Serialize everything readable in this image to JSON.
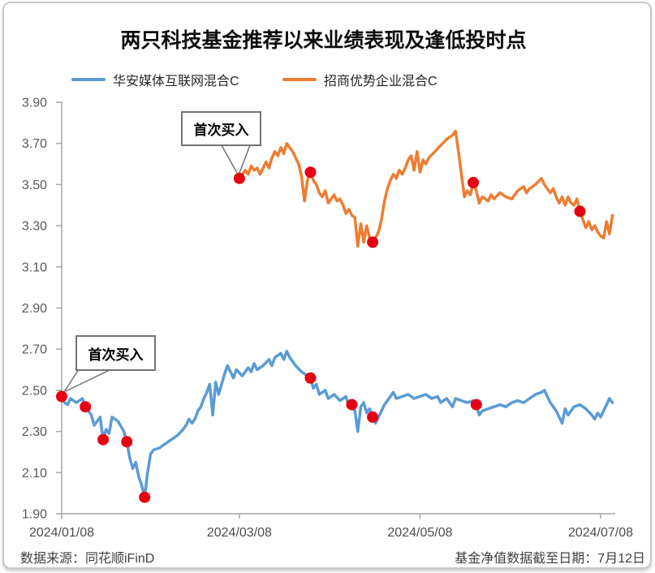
{
  "page": {
    "title": "两只科技基金推荐以来业绩表现及逢低投时点",
    "footer_left": "数据来源：同花顺iFinD",
    "footer_right": "基金净值数据截至日期：7月12日"
  },
  "chart_data": {
    "type": "line",
    "title": "两只科技基金推荐以来业绩表现及逢低投时点",
    "grid": false,
    "legend_position": "top-left",
    "x_axis": {
      "tick_labels": [
        "2024/01/08",
        "2024/03/08",
        "2024/05/08",
        "2024/07/08"
      ],
      "tick_days": [
        0,
        60,
        121,
        182
      ],
      "min_day": 0,
      "max_day": 186,
      "unit": "days since 2024/01/08"
    },
    "y_axis": {
      "min": 1.9,
      "max": 3.9,
      "step": 0.2,
      "tick_labels": [
        "3.90",
        "3.70",
        "3.50",
        "3.30",
        "3.10",
        "2.90",
        "2.70",
        "2.50",
        "2.30",
        "2.10",
        "1.90"
      ]
    },
    "buy_marker": {
      "label": "首次买入",
      "color": "#e60012",
      "radius": 7
    },
    "axis_color": "#a6a6a6",
    "tick_label_color": "#595959",
    "series": [
      {
        "name": "华安媒体互联网混合C",
        "color": "#5B9BD5",
        "points": [
          [
            0,
            2.47
          ],
          [
            1,
            2.44
          ],
          [
            2,
            2.43
          ],
          [
            3,
            2.46
          ],
          [
            5,
            2.44
          ],
          [
            7,
            2.46
          ],
          [
            8,
            2.42
          ],
          [
            10,
            2.38
          ],
          [
            11,
            2.33
          ],
          [
            13,
            2.37
          ],
          [
            14,
            2.26
          ],
          [
            15,
            2.31
          ],
          [
            16,
            2.29
          ],
          [
            17,
            2.37
          ],
          [
            19,
            2.35
          ],
          [
            21,
            2.3
          ],
          [
            22,
            2.25
          ],
          [
            23,
            2.17
          ],
          [
            24,
            2.12
          ],
          [
            25,
            2.15
          ],
          [
            26,
            2.08
          ],
          [
            27,
            2.04
          ],
          [
            28,
            1.98
          ],
          [
            29,
            2.1
          ],
          [
            30,
            2.19
          ],
          [
            31,
            2.21
          ],
          [
            33,
            2.22
          ],
          [
            35,
            2.24
          ],
          [
            37,
            2.26
          ],
          [
            39,
            2.28
          ],
          [
            41,
            2.31
          ],
          [
            42,
            2.33
          ],
          [
            43,
            2.36
          ],
          [
            44,
            2.34
          ],
          [
            45,
            2.36
          ],
          [
            46,
            2.4
          ],
          [
            47,
            2.42
          ],
          [
            48,
            2.46
          ],
          [
            49,
            2.49
          ],
          [
            50,
            2.53
          ],
          [
            51,
            2.38
          ],
          [
            52,
            2.54
          ],
          [
            53,
            2.48
          ],
          [
            55,
            2.58
          ],
          [
            56,
            2.62
          ],
          [
            57,
            2.59
          ],
          [
            58,
            2.56
          ],
          [
            59,
            2.6
          ],
          [
            61,
            2.57
          ],
          [
            63,
            2.61
          ],
          [
            64,
            2.59
          ],
          [
            65,
            2.63
          ],
          [
            66,
            2.6
          ],
          [
            68,
            2.62
          ],
          [
            70,
            2.65
          ],
          [
            71,
            2.62
          ],
          [
            72,
            2.66
          ],
          [
            74,
            2.68
          ],
          [
            75,
            2.65
          ],
          [
            76,
            2.69
          ],
          [
            77,
            2.66
          ],
          [
            79,
            2.62
          ],
          [
            81,
            2.59
          ],
          [
            83,
            2.57
          ],
          [
            84,
            2.56
          ],
          [
            85,
            2.51
          ],
          [
            86,
            2.53
          ],
          [
            87,
            2.48
          ],
          [
            89,
            2.5
          ],
          [
            90,
            2.46
          ],
          [
            92,
            2.48
          ],
          [
            94,
            2.45
          ],
          [
            96,
            2.47
          ],
          [
            97,
            2.42
          ],
          [
            98,
            2.43
          ],
          [
            99,
            2.4
          ],
          [
            100,
            2.3
          ],
          [
            101,
            2.42
          ],
          [
            102,
            2.44
          ],
          [
            103,
            2.39
          ],
          [
            104,
            2.41
          ],
          [
            105,
            2.37
          ],
          [
            106,
            2.34
          ],
          [
            107,
            2.37
          ],
          [
            108,
            2.4
          ],
          [
            109,
            2.43
          ],
          [
            110,
            2.45
          ],
          [
            112,
            2.49
          ],
          [
            113,
            2.46
          ],
          [
            115,
            2.47
          ],
          [
            117,
            2.48
          ],
          [
            119,
            2.46
          ],
          [
            121,
            2.47
          ],
          [
            123,
            2.48
          ],
          [
            125,
            2.46
          ],
          [
            127,
            2.47
          ],
          [
            128,
            2.44
          ],
          [
            130,
            2.46
          ],
          [
            132,
            2.42
          ],
          [
            133,
            2.46
          ],
          [
            135,
            2.45
          ],
          [
            137,
            2.44
          ],
          [
            139,
            2.45
          ],
          [
            140,
            2.43
          ],
          [
            141,
            2.38
          ],
          [
            142,
            2.4
          ],
          [
            144,
            2.41
          ],
          [
            146,
            2.42
          ],
          [
            148,
            2.43
          ],
          [
            150,
            2.42
          ],
          [
            152,
            2.44
          ],
          [
            154,
            2.45
          ],
          [
            156,
            2.44
          ],
          [
            158,
            2.46
          ],
          [
            160,
            2.48
          ],
          [
            162,
            2.49
          ],
          [
            163,
            2.5
          ],
          [
            165,
            2.44
          ],
          [
            167,
            2.4
          ],
          [
            169,
            2.34
          ],
          [
            170,
            2.41
          ],
          [
            171,
            2.38
          ],
          [
            173,
            2.42
          ],
          [
            175,
            2.43
          ],
          [
            177,
            2.41
          ],
          [
            179,
            2.38
          ],
          [
            180,
            2.36
          ],
          [
            181,
            2.39
          ],
          [
            182,
            2.37
          ],
          [
            183,
            2.4
          ],
          [
            184,
            2.43
          ],
          [
            185,
            2.46
          ],
          [
            186,
            2.44
          ]
        ],
        "buy_points": [
          [
            0,
            2.47
          ],
          [
            8,
            2.42
          ],
          [
            14,
            2.26
          ],
          [
            22,
            2.25
          ],
          [
            28,
            1.98
          ],
          [
            84,
            2.56
          ],
          [
            98,
            2.43
          ],
          [
            105,
            2.37
          ],
          [
            140,
            2.43
          ]
        ]
      },
      {
        "name": "招商优势企业混合C",
        "color": "#ED7D31",
        "points": [
          [
            60,
            3.53
          ],
          [
            61,
            3.55
          ],
          [
            62,
            3.57
          ],
          [
            63,
            3.55
          ],
          [
            64,
            3.59
          ],
          [
            65,
            3.57
          ],
          [
            66,
            3.58
          ],
          [
            67,
            3.55
          ],
          [
            68,
            3.58
          ],
          [
            69,
            3.61
          ],
          [
            70,
            3.58
          ],
          [
            71,
            3.63
          ],
          [
            72,
            3.66
          ],
          [
            73,
            3.64
          ],
          [
            74,
            3.68
          ],
          [
            75,
            3.65
          ],
          [
            76,
            3.7
          ],
          [
            77,
            3.68
          ],
          [
            78,
            3.66
          ],
          [
            79,
            3.63
          ],
          [
            80,
            3.6
          ],
          [
            81,
            3.54
          ],
          [
            82,
            3.42
          ],
          [
            83,
            3.52
          ],
          [
            84,
            3.56
          ],
          [
            85,
            3.52
          ],
          [
            86,
            3.5
          ],
          [
            87,
            3.46
          ],
          [
            88,
            3.44
          ],
          [
            89,
            3.47
          ],
          [
            90,
            3.41
          ],
          [
            91,
            3.43
          ],
          [
            92,
            3.45
          ],
          [
            93,
            3.42
          ],
          [
            94,
            3.43
          ],
          [
            95,
            3.4
          ],
          [
            96,
            3.36
          ],
          [
            97,
            3.38
          ],
          [
            98,
            3.35
          ],
          [
            99,
            3.34
          ],
          [
            100,
            3.2
          ],
          [
            101,
            3.31
          ],
          [
            102,
            3.22
          ],
          [
            103,
            3.3
          ],
          [
            104,
            3.24
          ],
          [
            105,
            3.22
          ],
          [
            106,
            3.24
          ],
          [
            107,
            3.27
          ],
          [
            108,
            3.33
          ],
          [
            109,
            3.42
          ],
          [
            110,
            3.48
          ],
          [
            111,
            3.52
          ],
          [
            112,
            3.55
          ],
          [
            113,
            3.53
          ],
          [
            114,
            3.57
          ],
          [
            115,
            3.55
          ],
          [
            116,
            3.58
          ],
          [
            117,
            3.62
          ],
          [
            118,
            3.64
          ],
          [
            119,
            3.57
          ],
          [
            120,
            3.66
          ],
          [
            121,
            3.56
          ],
          [
            122,
            3.62
          ],
          [
            123,
            3.6
          ],
          [
            124,
            3.63
          ],
          [
            126,
            3.66
          ],
          [
            128,
            3.69
          ],
          [
            130,
            3.72
          ],
          [
            132,
            3.74
          ],
          [
            133,
            3.76
          ],
          [
            134,
            3.66
          ],
          [
            135,
            3.55
          ],
          [
            136,
            3.44
          ],
          [
            137,
            3.47
          ],
          [
            138,
            3.45
          ],
          [
            139,
            3.51
          ],
          [
            140,
            3.47
          ],
          [
            141,
            3.41
          ],
          [
            142,
            3.44
          ],
          [
            144,
            3.42
          ],
          [
            145,
            3.45
          ],
          [
            146,
            3.43
          ],
          [
            148,
            3.46
          ],
          [
            150,
            3.44
          ],
          [
            152,
            3.43
          ],
          [
            154,
            3.47
          ],
          [
            156,
            3.49
          ],
          [
            157,
            3.46
          ],
          [
            158,
            3.48
          ],
          [
            160,
            3.5
          ],
          [
            162,
            3.53
          ],
          [
            163,
            3.5
          ],
          [
            164,
            3.48
          ],
          [
            165,
            3.46
          ],
          [
            166,
            3.48
          ],
          [
            167,
            3.44
          ],
          [
            168,
            3.41
          ],
          [
            169,
            3.44
          ],
          [
            170,
            3.4
          ],
          [
            171,
            3.44
          ],
          [
            172,
            3.41
          ],
          [
            173,
            3.4
          ],
          [
            174,
            3.43
          ],
          [
            175,
            3.37
          ],
          [
            176,
            3.33
          ],
          [
            177,
            3.29
          ],
          [
            178,
            3.32
          ],
          [
            179,
            3.28
          ],
          [
            180,
            3.3
          ],
          [
            181,
            3.27
          ],
          [
            182,
            3.25
          ],
          [
            183,
            3.24
          ],
          [
            184,
            3.32
          ],
          [
            185,
            3.26
          ],
          [
            186,
            3.35
          ]
        ],
        "buy_points": [
          [
            60,
            3.53
          ],
          [
            84,
            3.56
          ],
          [
            105,
            3.22
          ],
          [
            139,
            3.51
          ],
          [
            175,
            3.37
          ]
        ]
      }
    ]
  }
}
